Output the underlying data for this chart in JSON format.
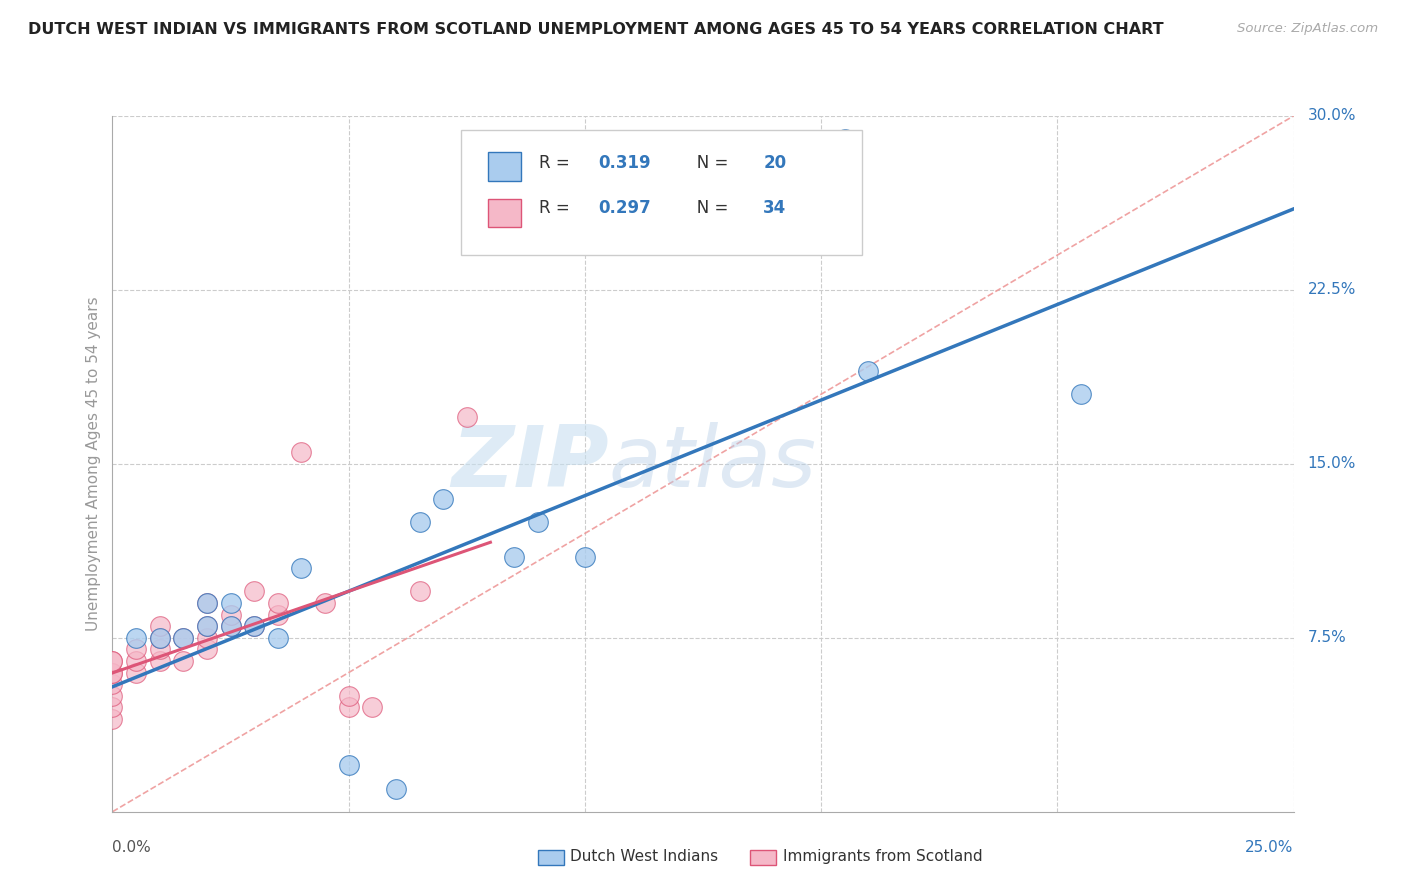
{
  "title": "DUTCH WEST INDIAN VS IMMIGRANTS FROM SCOTLAND UNEMPLOYMENT AMONG AGES 45 TO 54 YEARS CORRELATION CHART",
  "source": "Source: ZipAtlas.com",
  "ylabel": "Unemployment Among Ages 45 to 54 years",
  "ytick_labels": [
    "7.5%",
    "15.0%",
    "22.5%",
    "30.0%"
  ],
  "ytick_values": [
    0.075,
    0.15,
    0.225,
    0.3
  ],
  "xlim": [
    0,
    0.25
  ],
  "ylim": [
    0,
    0.3
  ],
  "r_blue": 0.319,
  "n_blue": 20,
  "r_pink": 0.297,
  "n_pink": 34,
  "legend_label_blue": "Dutch West Indians",
  "legend_label_pink": "Immigrants from Scotland",
  "blue_color": "#aaccee",
  "blue_line_color": "#3377bb",
  "pink_color": "#f5b8c8",
  "pink_line_color": "#dd5577",
  "diag_color": "#ee9999",
  "watermark_zip": "ZIP",
  "watermark_atlas": "atlas",
  "blue_x": [
    0.005,
    0.01,
    0.015,
    0.02,
    0.02,
    0.025,
    0.025,
    0.03,
    0.035,
    0.04,
    0.05,
    0.06,
    0.065,
    0.07,
    0.085,
    0.09,
    0.1,
    0.155,
    0.16,
    0.205
  ],
  "blue_y": [
    0.075,
    0.075,
    0.075,
    0.08,
    0.09,
    0.08,
    0.09,
    0.08,
    0.075,
    0.105,
    0.02,
    0.01,
    0.125,
    0.135,
    0.11,
    0.125,
    0.11,
    0.29,
    0.19,
    0.18
  ],
  "pink_x": [
    0.0,
    0.0,
    0.0,
    0.0,
    0.0,
    0.0,
    0.0,
    0.0,
    0.005,
    0.005,
    0.005,
    0.01,
    0.01,
    0.01,
    0.01,
    0.015,
    0.015,
    0.02,
    0.02,
    0.02,
    0.02,
    0.025,
    0.025,
    0.03,
    0.03,
    0.035,
    0.035,
    0.04,
    0.045,
    0.05,
    0.05,
    0.055,
    0.065,
    0.075
  ],
  "pink_y": [
    0.04,
    0.045,
    0.05,
    0.055,
    0.06,
    0.06,
    0.065,
    0.065,
    0.06,
    0.065,
    0.07,
    0.065,
    0.07,
    0.075,
    0.08,
    0.065,
    0.075,
    0.07,
    0.075,
    0.08,
    0.09,
    0.08,
    0.085,
    0.08,
    0.095,
    0.085,
    0.09,
    0.155,
    0.09,
    0.045,
    0.05,
    0.045,
    0.095,
    0.17
  ]
}
